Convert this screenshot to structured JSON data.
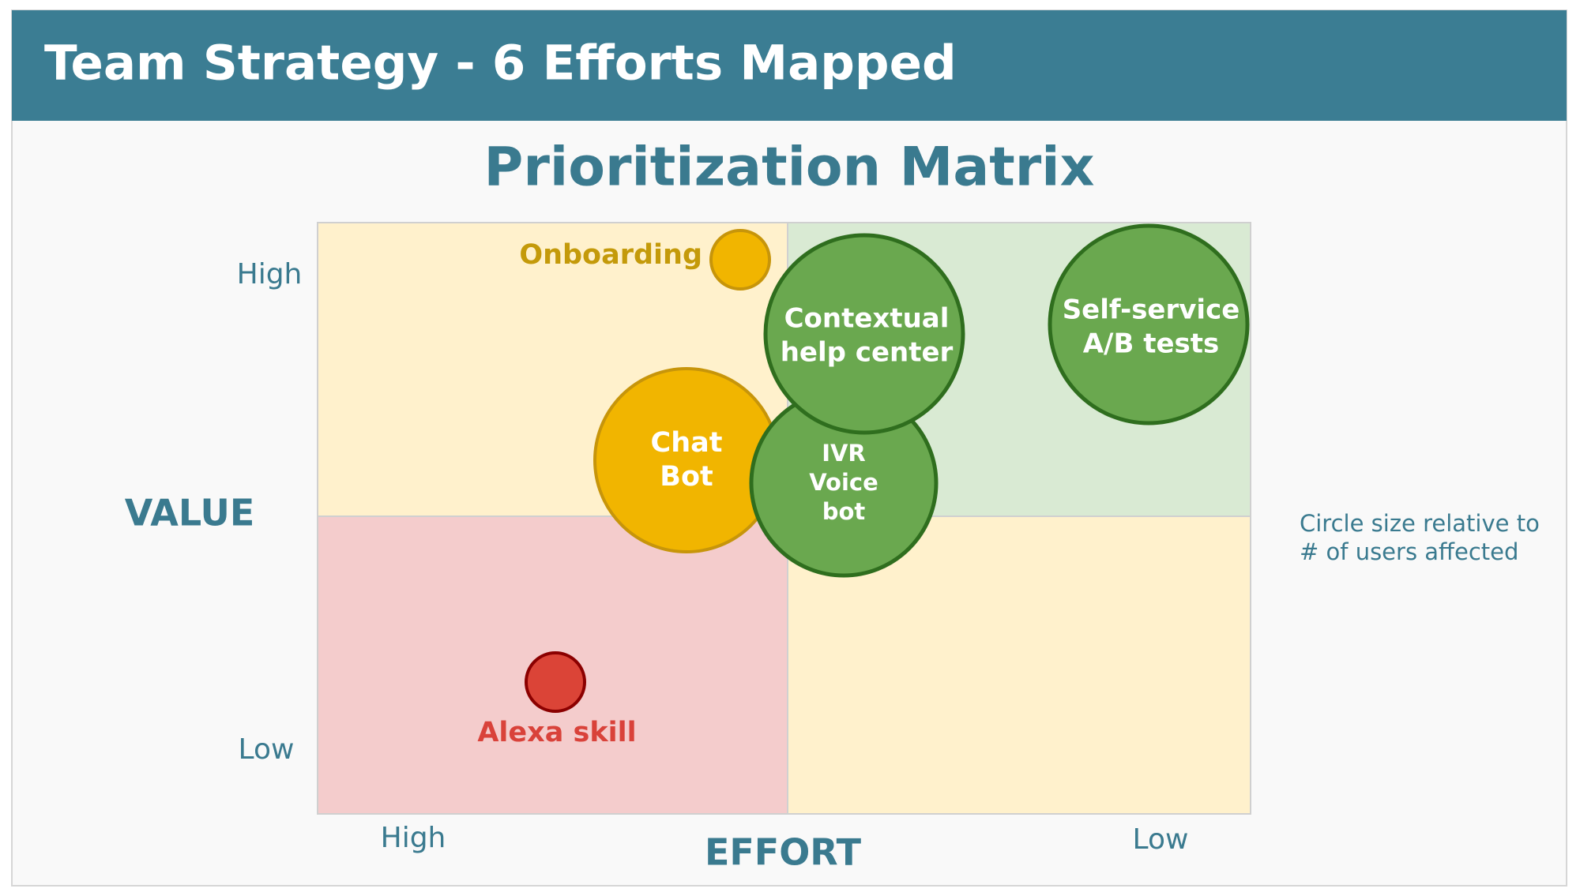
{
  "header": {
    "title": "Team Strategy - 6 Efforts Mapped"
  },
  "matrix": {
    "title": "Prioritization Matrix",
    "y_axis": {
      "label": "VALUE",
      "high": "High",
      "low": "Low"
    },
    "x_axis": {
      "label": "EFFORT",
      "high": "High",
      "low": "Low"
    },
    "note": [
      "Circle size relative to",
      "# of users affected"
    ],
    "items": [
      {
        "lines": [
          "Onboarding"
        ]
      },
      {
        "lines": [
          "Chat",
          "Bot"
        ]
      },
      {
        "lines": [
          "IVR",
          "Voice",
          "bot"
        ]
      },
      {
        "lines": [
          "Contextual",
          "help center"
        ]
      },
      {
        "lines": [
          "Self-service",
          "A/B tests"
        ]
      },
      {
        "lines": [
          "Alexa skill"
        ]
      }
    ]
  }
}
